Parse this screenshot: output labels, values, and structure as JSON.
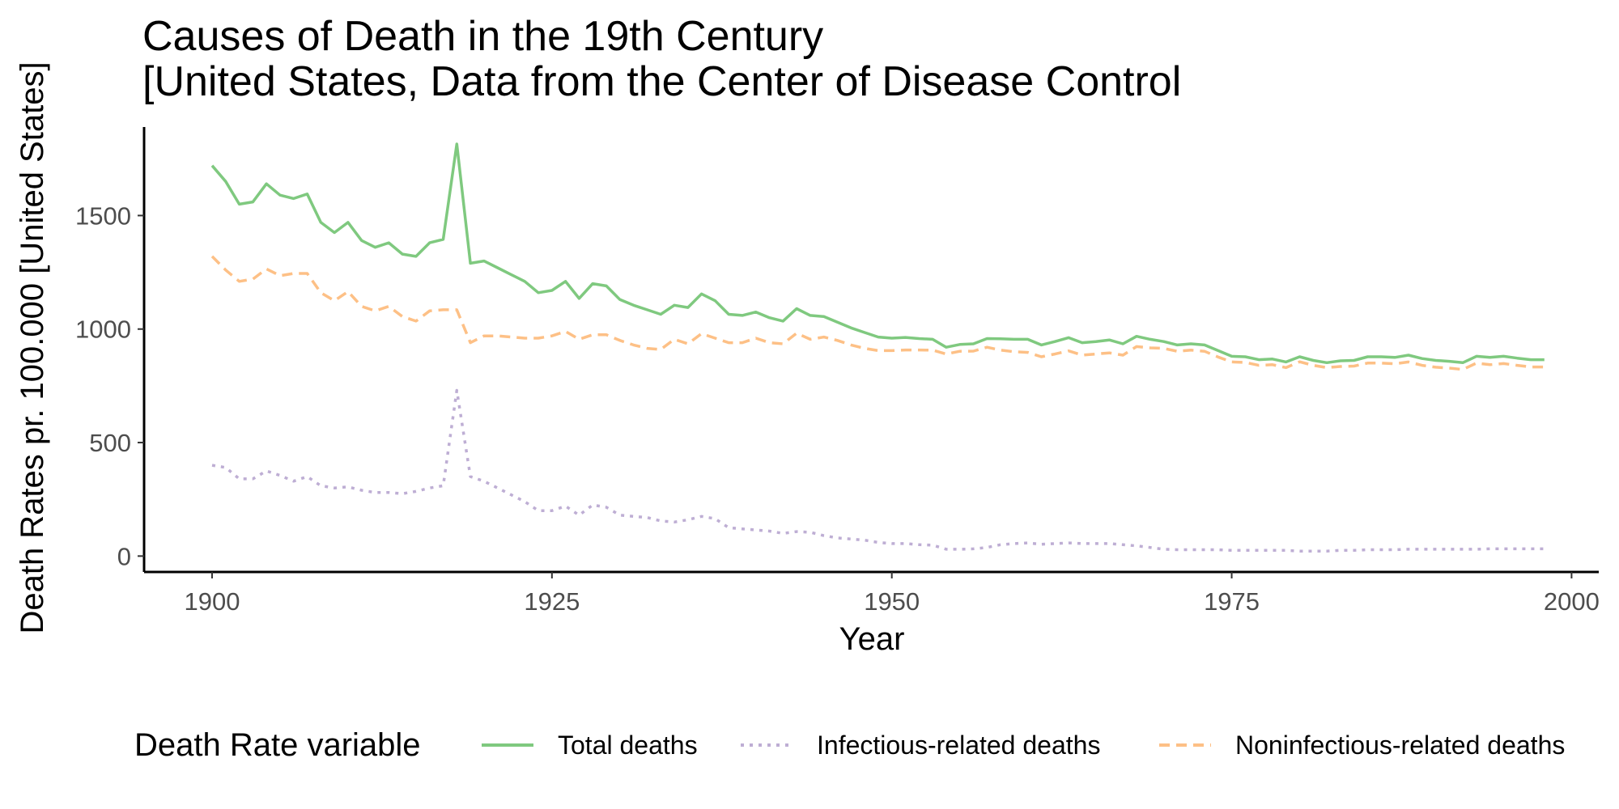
{
  "chart_data": {
    "type": "line",
    "title": "Causes of Death in the 19th Century",
    "subtitle": "[United States, Data from the Center of Disease Control",
    "xlabel": "Year",
    "ylabel": "Death Rates pr. 100.000 [United States]",
    "xlim": [
      1895,
      2002
    ],
    "ylim": [
      -70,
      1890
    ],
    "x_ticks": [
      1900,
      1925,
      1950,
      1975,
      2000
    ],
    "y_ticks": [
      0,
      500,
      1000,
      1500
    ],
    "grid": false,
    "legend": {
      "title": "Death Rate variable",
      "position": "bottom"
    },
    "x": [
      1900,
      1901,
      1902,
      1903,
      1904,
      1905,
      1906,
      1907,
      1908,
      1909,
      1910,
      1911,
      1912,
      1913,
      1914,
      1915,
      1916,
      1917,
      1918,
      1919,
      1920,
      1921,
      1922,
      1923,
      1924,
      1925,
      1926,
      1927,
      1928,
      1929,
      1930,
      1931,
      1932,
      1933,
      1934,
      1935,
      1936,
      1937,
      1938,
      1939,
      1940,
      1941,
      1942,
      1943,
      1944,
      1945,
      1946,
      1947,
      1948,
      1949,
      1950,
      1951,
      1952,
      1953,
      1954,
      1955,
      1956,
      1957,
      1958,
      1959,
      1960,
      1961,
      1962,
      1963,
      1964,
      1965,
      1966,
      1967,
      1968,
      1969,
      1970,
      1971,
      1972,
      1973,
      1974,
      1975,
      1976,
      1977,
      1978,
      1979,
      1980,
      1981,
      1982,
      1983,
      1984,
      1985,
      1986,
      1987,
      1988,
      1989,
      1990,
      1991,
      1992,
      1993,
      1994,
      1995,
      1996,
      1997,
      1998
    ],
    "series": [
      {
        "name": "Total deaths",
        "color": "#7fc97f",
        "dash": "solid",
        "values": [
          1720,
          1650,
          1550,
          1560,
          1640,
          1590,
          1575,
          1595,
          1470,
          1425,
          1470,
          1390,
          1360,
          1380,
          1330,
          1320,
          1380,
          1395,
          1815,
          1290,
          1300,
          1270,
          1240,
          1210,
          1160,
          1170,
          1210,
          1135,
          1200,
          1190,
          1130,
          1105,
          1085,
          1065,
          1105,
          1095,
          1155,
          1125,
          1065,
          1060,
          1075,
          1050,
          1035,
          1090,
          1060,
          1055,
          1030,
          1005,
          985,
          965,
          960,
          963,
          958,
          955,
          920,
          932,
          935,
          958,
          957,
          955,
          955,
          930,
          945,
          962,
          940,
          945,
          952,
          935,
          968,
          955,
          945,
          930,
          935,
          930,
          905,
          880,
          878,
          865,
          868,
          855,
          878,
          862,
          852,
          860,
          862,
          878,
          878,
          875,
          885,
          870,
          862,
          858,
          852,
          880,
          875,
          880,
          872,
          865,
          865
        ]
      },
      {
        "name": "Infectious-related deaths",
        "color": "#beaed4",
        "dash": "dotted",
        "values": [
          400,
          390,
          340,
          340,
          375,
          355,
          330,
          350,
          310,
          300,
          305,
          290,
          280,
          280,
          275,
          285,
          300,
          310,
          730,
          350,
          330,
          300,
          270,
          240,
          200,
          200,
          220,
          180,
          225,
          215,
          180,
          175,
          170,
          155,
          150,
          160,
          175,
          165,
          125,
          120,
          115,
          110,
          100,
          108,
          105,
          90,
          80,
          75,
          70,
          60,
          55,
          55,
          50,
          48,
          30,
          30,
          32,
          38,
          50,
          55,
          58,
          52,
          55,
          58,
          55,
          55,
          55,
          50,
          45,
          38,
          30,
          28,
          28,
          28,
          28,
          25,
          25,
          25,
          25,
          25,
          22,
          22,
          22,
          25,
          25,
          28,
          28,
          28,
          30,
          30,
          30,
          30,
          30,
          30,
          32,
          32,
          32,
          32,
          32
        ]
      },
      {
        "name": "Noninfectious-related deaths",
        "color": "#fdc086",
        "dash": "dashed",
        "values": [
          1320,
          1260,
          1210,
          1220,
          1265,
          1235,
          1245,
          1245,
          1160,
          1125,
          1165,
          1100,
          1080,
          1100,
          1055,
          1035,
          1080,
          1085,
          1085,
          940,
          970,
          970,
          965,
          960,
          960,
          970,
          990,
          955,
          975,
          975,
          950,
          930,
          915,
          910,
          955,
          935,
          980,
          960,
          940,
          940,
          960,
          940,
          935,
          982,
          955,
          965,
          950,
          930,
          915,
          905,
          905,
          908,
          908,
          907,
          890,
          902,
          903,
          920,
          907,
          900,
          897,
          878,
          890,
          904,
          885,
          890,
          895,
          885,
          923,
          917,
          915,
          902,
          907,
          902,
          877,
          855,
          853,
          840,
          843,
          830,
          856,
          840,
          830,
          835,
          837,
          850,
          850,
          847,
          855,
          840,
          832,
          828,
          822,
          850,
          843,
          848,
          840,
          833,
          833
        ]
      }
    ]
  }
}
